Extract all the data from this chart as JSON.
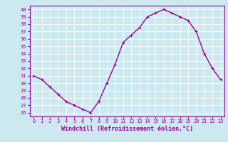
{
  "x": [
    0,
    1,
    2,
    3,
    4,
    5,
    6,
    7,
    8,
    9,
    10,
    11,
    12,
    13,
    14,
    15,
    16,
    17,
    18,
    19,
    20,
    21,
    22,
    23
  ],
  "y": [
    31,
    30.5,
    29.5,
    28.5,
    27.5,
    27.0,
    26.5,
    26.0,
    27.5,
    30.0,
    32.5,
    35.5,
    36.5,
    37.5,
    39.0,
    39.5,
    40.0,
    39.5,
    39.0,
    38.5,
    37.0,
    34.0,
    32.0,
    30.5
  ],
  "line_color": "#990099",
  "marker": "+",
  "marker_size": 3,
  "linewidth": 1.0,
  "xlabel": "Windchill (Refroidissement éolien,°C)",
  "xlabel_fontsize": 6,
  "ylabel_ticks": [
    26,
    27,
    28,
    29,
    30,
    31,
    32,
    33,
    34,
    35,
    36,
    37,
    38,
    39,
    40
  ],
  "xlim": [
    -0.5,
    23.5
  ],
  "ylim": [
    25.5,
    40.5
  ],
  "background_color": "#cce9f0",
  "grid_color": "#ffffff",
  "tick_color": "#990099",
  "tick_fontsize": 5,
  "spine_color": "#990099"
}
